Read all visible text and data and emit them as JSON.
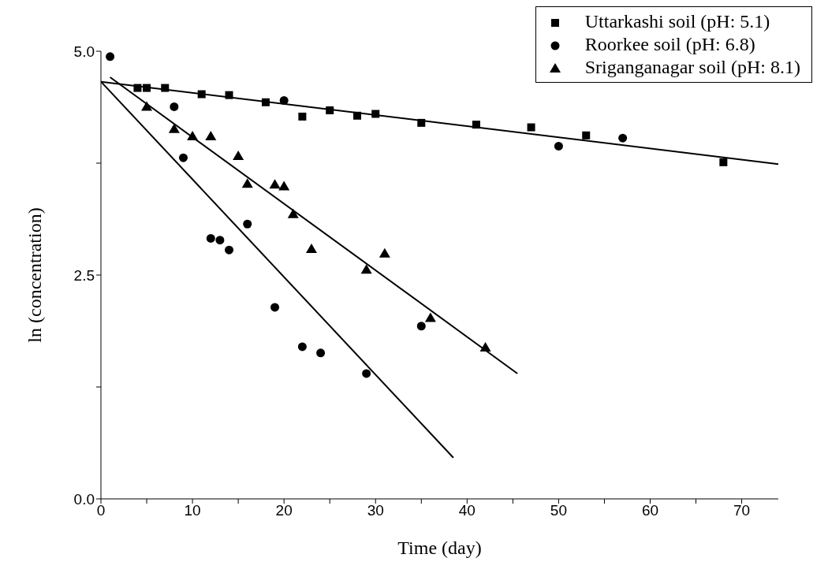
{
  "chart_data": {
    "type": "scatter",
    "xlabel": "Time (day)",
    "ylabel": "ln (concentration)",
    "legend": "top right",
    "xlim": [
      0,
      74
    ],
    "xticks": [
      0,
      {
        "value": 5,
        "label": null
      },
      10,
      {
        "value": 15,
        "label": null
      },
      20,
      {
        "value": 25,
        "label": null
      },
      30,
      {
        "value": 35,
        "label": null
      },
      40,
      {
        "value": 45,
        "label": null
      },
      50,
      {
        "value": 55,
        "label": null
      },
      60,
      {
        "value": 65,
        "label": null
      },
      70
    ],
    "ylim": [
      0,
      5
    ],
    "yticks": [
      {
        "value": 0,
        "label": "0.0"
      },
      {
        "value": 1.25,
        "label": null
      },
      2.5,
      {
        "value": 3.75,
        "label": null
      },
      {
        "value": 5,
        "label": "5.0"
      }
    ],
    "series": [
      {
        "name": "Uttarkashi soil (pH: 5.1)",
        "color": "#000000",
        "marker": "square",
        "x": [
          4,
          5,
          7,
          11,
          14,
          18,
          22,
          25,
          28,
          30,
          35,
          41,
          47,
          53,
          68
        ],
        "values": [
          4.59,
          4.59,
          4.59,
          4.52,
          4.51,
          4.43,
          4.27,
          4.34,
          4.28,
          4.3,
          4.2,
          4.18,
          4.15,
          4.06,
          3.76
        ]
      },
      {
        "name": "Roorkee soil (pH: 6.8)",
        "color": "#000000",
        "marker": "circle",
        "x": [
          1,
          8,
          9,
          12,
          13,
          14,
          16,
          19,
          20,
          22,
          24,
          29,
          35,
          50,
          57
        ],
        "values": [
          4.94,
          4.38,
          3.81,
          2.91,
          2.89,
          2.78,
          3.07,
          2.14,
          4.45,
          1.7,
          1.63,
          1.4,
          1.93,
          3.94,
          4.03
        ]
      },
      {
        "name": "Sriganganagar soil (pH: 8.1)",
        "color": "#000000",
        "marker": "triangle",
        "x": [
          5,
          8,
          10,
          12,
          15,
          16,
          19,
          20,
          21,
          23,
          29,
          31,
          36,
          42
        ],
        "values": [
          4.38,
          4.13,
          4.05,
          4.05,
          3.83,
          3.52,
          3.51,
          3.49,
          3.18,
          2.79,
          2.56,
          2.74,
          2.02,
          1.69
        ]
      },
      {
        "type": "line",
        "color": "#000000",
        "x": [
          0,
          74
        ],
        "values": [
          4.66,
          3.74
        ]
      },
      {
        "type": "line",
        "color": "#000000",
        "x": [
          0,
          38.5
        ],
        "values": [
          4.66,
          0.46
        ]
      },
      {
        "type": "line",
        "color": "#000000",
        "x": [
          1,
          45.5
        ],
        "values": [
          4.71,
          1.4
        ]
      }
    ]
  }
}
